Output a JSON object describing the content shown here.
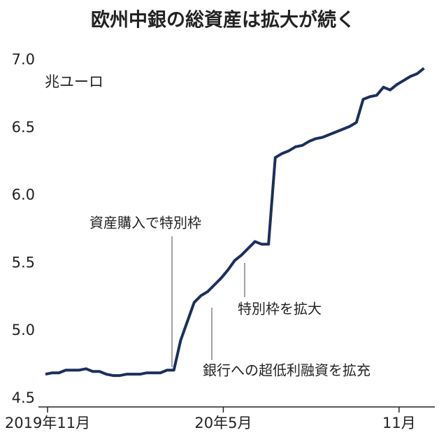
{
  "chart_data": {
    "type": "line",
    "title": "欧州中銀の総資産は拡大が続く",
    "y_label": "兆ユーロ",
    "categories": [
      "2019年11月",
      null,
      null,
      null,
      null,
      null,
      null,
      null,
      null,
      null,
      null,
      null,
      null,
      null,
      null,
      null,
      null,
      null,
      null,
      null,
      null,
      null,
      null,
      null,
      null,
      null,
      "20年5月",
      null,
      null,
      null,
      null,
      null,
      null,
      null,
      null,
      null,
      null,
      null,
      null,
      null,
      null,
      null,
      null,
      null,
      null,
      null,
      null,
      null,
      null,
      null,
      null,
      null,
      "11月",
      null,
      null,
      null,
      null
    ],
    "series": [
      {
        "color": "#1c2f5c",
        "values": [
          4.68,
          4.69,
          4.69,
          4.71,
          4.71,
          4.71,
          4.72,
          4.7,
          4.7,
          4.68,
          4.67,
          4.67,
          4.68,
          4.68,
          4.68,
          4.69,
          4.69,
          4.69,
          4.71,
          4.71,
          4.93,
          5.07,
          5.21,
          5.26,
          5.29,
          5.34,
          5.39,
          5.45,
          5.52,
          5.56,
          5.61,
          5.66,
          5.64,
          5.64,
          6.28,
          6.31,
          6.33,
          6.36,
          6.37,
          6.4,
          6.42,
          6.43,
          6.45,
          6.47,
          6.49,
          6.51,
          6.54,
          6.71,
          6.73,
          6.74,
          6.8,
          6.78,
          6.82,
          6.85,
          6.88,
          6.9,
          6.94
        ]
      }
    ],
    "ylim": [
      4.5,
      7.0
    ],
    "yticks": [
      4.5,
      {
        "value": 5,
        "label": "5.0"
      },
      5.5,
      {
        "value": 6,
        "label": "6.0"
      },
      6.5,
      {
        "value": 7,
        "label": "7.0"
      }
    ],
    "grid": false,
    "annotations": [
      "資産購入で特別枠",
      "銀行への超低利融資を拡充",
      "特別枠を拡大"
    ]
  }
}
